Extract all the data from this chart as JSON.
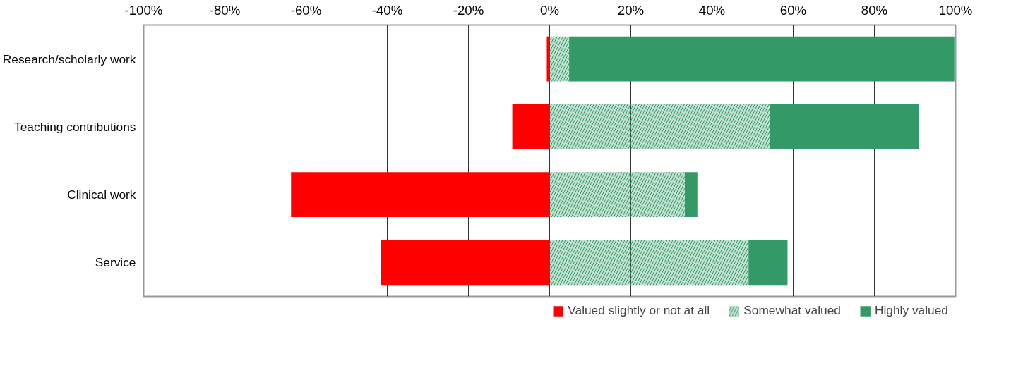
{
  "chart_data": {
    "type": "bar",
    "orientation": "horizontal",
    "stacked": true,
    "categories": [
      "Research/scholarly work",
      "Teaching contributions",
      "Clinical work",
      "Service"
    ],
    "series": [
      {
        "name": "Valued slightly or not at all",
        "color": "#ff0000",
        "values": [
          -0.7,
          -9.2,
          -63.7,
          -41.6
        ]
      },
      {
        "name": "Somewhat valued",
        "color": "#339966",
        "values": [
          4.8,
          54.3,
          33.3,
          49.0
        ]
      },
      {
        "name": "Highly valued",
        "color": "#339966",
        "values": [
          94.9,
          36.7,
          3.1,
          9.6
        ]
      }
    ],
    "xlim": [
      -100,
      100
    ],
    "xticks": [
      {
        "value": -100,
        "label": "-100%"
      },
      {
        "value": -80,
        "label": "-80%"
      },
      {
        "value": -60,
        "label": "-60%"
      },
      {
        "value": -40,
        "label": "-40%"
      },
      {
        "value": -20,
        "label": "-20%"
      },
      {
        "value": 0,
        "label": "0%"
      },
      {
        "value": 20,
        "label": "20%"
      },
      {
        "value": 40,
        "label": "40%"
      },
      {
        "value": 60,
        "label": "60%"
      },
      {
        "value": 80,
        "label": "80%"
      },
      {
        "value": 100,
        "label": "100%"
      }
    ],
    "grid": "x",
    "legend": "bottom"
  }
}
